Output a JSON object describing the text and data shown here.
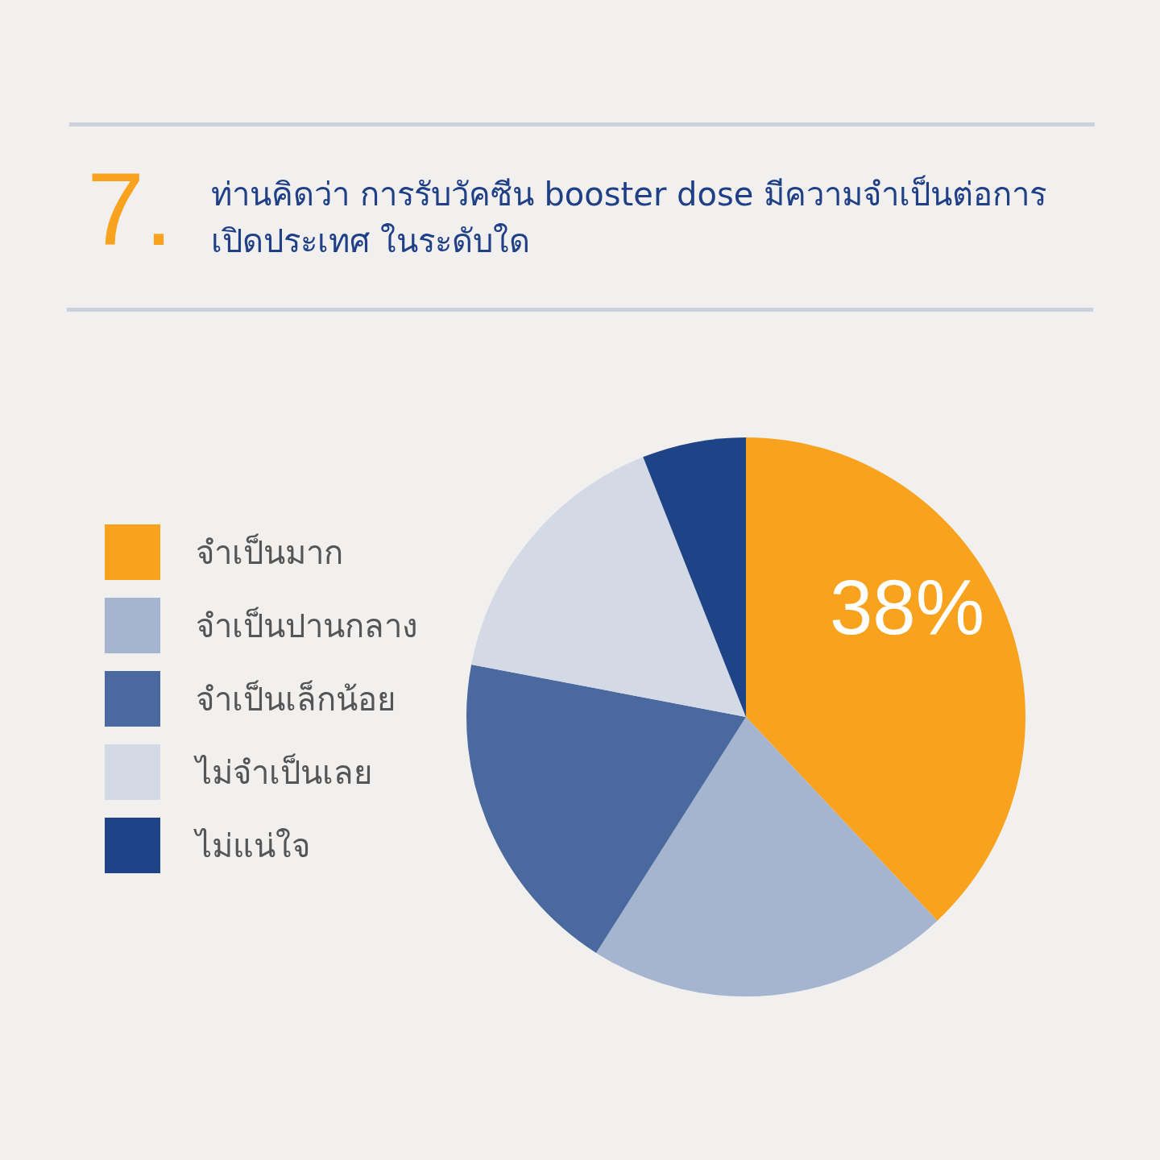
{
  "chart_data": {
    "type": "pie",
    "title": "ท่านคิดว่า การรับวัคซีน booster dose มีความจำเป็นต่อการเปิดประเทศ ในระดับใด",
    "annotations": [
      "7."
    ],
    "categories": [
      "จำเป็นมาก",
      "จำเป็นปานกลาง",
      "จำเป็นเล็กน้อย",
      "ไม่จำเป็นเลย",
      "ไม่แน่ใจ"
    ],
    "values": [
      38,
      21,
      19,
      16,
      6
    ],
    "colors": [
      "#f8a21e",
      "#a5b4cf",
      "#4a699e",
      "#d3dae6",
      "#1f4387"
    ],
    "value_labels": [
      "38%",
      null,
      null,
      null,
      null
    ],
    "legend": "left"
  }
}
